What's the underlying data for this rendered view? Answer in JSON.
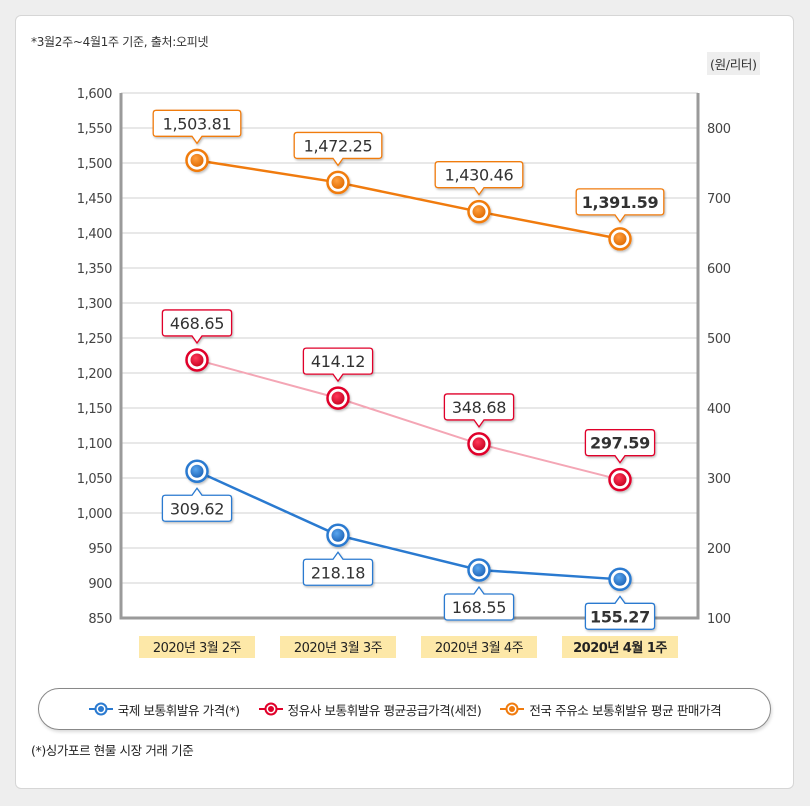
{
  "notes": {
    "top": "*3월2주~4월1주 기준, 출처:오피넷",
    "unit": "(원/리터)",
    "bottom": "(*)싱가포르 현물 시장 거래 기준"
  },
  "colors": {
    "orange": "#f07b0e",
    "red": "#e0002a",
    "red_line": "#f4a6b5",
    "blue": "#2a7ad0",
    "axis": "#9a9a9a",
    "grid": "#d0d0d0",
    "category_bg": "#fde8a8"
  },
  "chart_data": {
    "type": "line",
    "categories": [
      "2020년 3월 2주",
      "2020년 3월 3주",
      "2020년 3월 4주",
      "2020년 4월 1주"
    ],
    "highlight_category_index": 3,
    "left_axis": {
      "range": [
        850,
        1600
      ],
      "ticks": [
        "1,600",
        "1,550",
        "1,500",
        "1,450",
        "1,400",
        "1,350",
        "1,300",
        "1,250",
        "1,200",
        "1,150",
        "1,100",
        "1,050",
        "1,000",
        "950",
        "900",
        "850"
      ],
      "tick_values": [
        1600,
        1550,
        1500,
        1450,
        1400,
        1350,
        1300,
        1250,
        1200,
        1150,
        1100,
        1050,
        1000,
        950,
        900,
        850
      ]
    },
    "right_axis": {
      "label": "(원/리터)",
      "range": [
        100,
        850
      ],
      "ticks": [
        "800",
        "700",
        "600",
        "500",
        "400",
        "300",
        "200",
        "100"
      ],
      "tick_values": [
        800,
        700,
        600,
        500,
        400,
        300,
        200,
        100
      ]
    },
    "grid": true,
    "legend_position": "bottom",
    "series": [
      {
        "name": "국제 보통휘발유 가격(*)",
        "axis": "right",
        "color": "#2a7ad0",
        "line_color": "#2a7ad0",
        "label_position": "below",
        "values": [
          309.62,
          218.18,
          168.55,
          155.27
        ],
        "labels": [
          "309.62",
          "218.18",
          "168.55",
          "155.27"
        ]
      },
      {
        "name": "정유사 보통휘발유 평균공급가격(세전)",
        "axis": "right",
        "color": "#e0002a",
        "line_color": "#f4a6b5",
        "label_position": "above",
        "values": [
          468.65,
          414.12,
          348.68,
          297.59
        ],
        "labels": [
          "468.65",
          "414.12",
          "348.68",
          "297.59"
        ]
      },
      {
        "name": "전국 주유소 보통휘발유 평균 판매가격",
        "axis": "left",
        "color": "#f07b0e",
        "line_color": "#f07b0e",
        "label_position": "above",
        "values": [
          1503.81,
          1472.25,
          1430.46,
          1391.59
        ],
        "labels": [
          "1,503.81",
          "1,472.25",
          "1,430.46",
          "1,391.59"
        ]
      }
    ]
  },
  "legend": {
    "items": [
      {
        "label": "국제 보통휘발유 가격(*)",
        "icon": "blue-circle-marker",
        "color": "#2a7ad0"
      },
      {
        "label": "정유사 보통휘발유 평균공급가격(세전)",
        "icon": "red-circle-marker",
        "color": "#e0002a"
      },
      {
        "label": "전국 주유소 보통휘발유 평균 판매가격",
        "icon": "orange-circle-marker",
        "color": "#f07b0e"
      }
    ]
  }
}
